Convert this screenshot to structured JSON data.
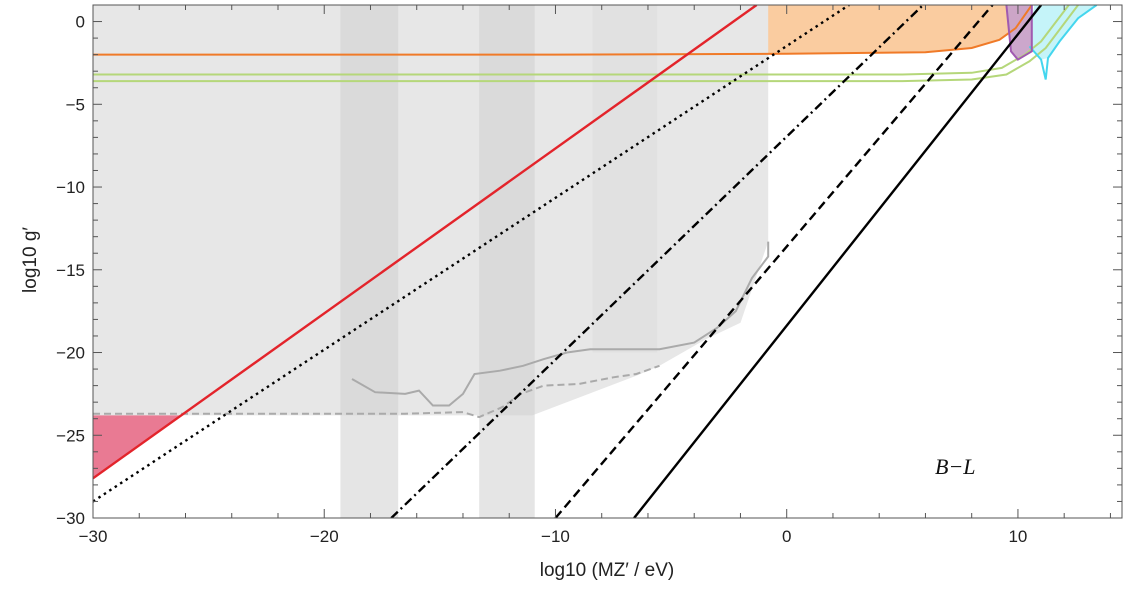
{
  "chart_data": {
    "type": "area",
    "xlabel": "log10 (MZ′ / eV)",
    "ylabel": "log10 g′",
    "model_label": "B−L",
    "xlim": [
      -30,
      14.5
    ],
    "ylim": [
      -30,
      1
    ],
    "xticks": [
      -30,
      -20,
      -10,
      0,
      10
    ],
    "xtick_labels": [
      "−30",
      "−20",
      "−10",
      "0",
      "10"
    ],
    "yticks": [
      0,
      -5,
      -10,
      -15,
      -20,
      -25,
      -30
    ],
    "ytick_labels": [
      "0",
      "−5",
      "−10",
      "−15",
      "−20",
      "−25",
      "−30"
    ],
    "grid": false,
    "colors": {
      "red_region": "#e8738d",
      "red_line": "#e3242b",
      "orange_region": "#f9c796",
      "orange_line": "#f07a28",
      "green_line": "#b5d77a",
      "grey_region": "#e7e7e7",
      "grey_band": "#cfcfcf",
      "grey_line": "#aaaaaa",
      "cyan_region": "#bff3f8",
      "cyan_line": "#44d6ee",
      "purple_region": "#c9a2c9",
      "purple_line": "#a05ab0",
      "black": "#000000"
    },
    "series": [
      {
        "style": "solid",
        "color": "#000000",
        "points": [
          [
            -6.6,
            -30
          ],
          [
            11.0,
            1
          ]
        ]
      },
      {
        "style": "dashed",
        "color": "#000000",
        "points": [
          [
            -10.0,
            -30
          ],
          [
            8.9,
            1
          ]
        ]
      },
      {
        "style": "dashdot",
        "color": "#000000",
        "points": [
          [
            -17.1,
            -30
          ],
          [
            5.9,
            1
          ]
        ]
      },
      {
        "style": "dotted",
        "color": "#000000",
        "points": [
          [
            -30.0,
            -29.0
          ],
          [
            2.7,
            1
          ]
        ]
      },
      {
        "style": "solid",
        "color": "#e3242b",
        "points": [
          [
            -30.0,
            -27.6
          ],
          [
            -1.3,
            1
          ]
        ]
      }
    ],
    "regions": [
      {
        "name": "red",
        "color": "#e8738d",
        "opacity": 0.95,
        "points": [
          [
            -30,
            -27.6
          ],
          [
            -1.3,
            1
          ],
          [
            -30,
            1
          ]
        ]
      },
      {
        "name": "orange",
        "color": "#f9c796",
        "opacity": 0.9,
        "points": [
          [
            -30,
            -2.0
          ],
          [
            -10,
            -2.0
          ],
          [
            0,
            -1.95
          ],
          [
            6,
            -1.85
          ],
          [
            8,
            -1.6
          ],
          [
            9.2,
            -1.1
          ],
          [
            9.9,
            -0.4
          ],
          [
            10.6,
            1
          ],
          [
            -30,
            1
          ]
        ]
      },
      {
        "name": "cyan",
        "color": "#bff3f8",
        "opacity": 0.9,
        "points": [
          [
            10.5,
            -1.5
          ],
          [
            11.0,
            -2.3
          ],
          [
            11.3,
            -2.2
          ],
          [
            11.8,
            -1.2
          ],
          [
            12.6,
            0.2
          ],
          [
            13.4,
            1
          ],
          [
            10.7,
            1
          ]
        ]
      },
      {
        "name": "purple",
        "color": "#c9a2c9",
        "opacity": 0.95,
        "points": [
          [
            9.5,
            1
          ],
          [
            9.7,
            -1.8
          ],
          [
            10.0,
            -2.3
          ],
          [
            10.6,
            -1.8
          ],
          [
            10.6,
            1
          ]
        ]
      },
      {
        "name": "grey-main",
        "color": "#e7e7e7",
        "opacity": 1,
        "points": [
          [
            -30,
            -23.8
          ],
          [
            -11.0,
            -23.8
          ],
          [
            -6.5,
            -21.4
          ],
          [
            -5.5,
            -20.8
          ],
          [
            -3.5,
            -19.2
          ],
          [
            -2.0,
            -18.2
          ],
          [
            -0.8,
            -13.3
          ],
          [
            -0.8,
            1
          ],
          [
            -30,
            1
          ]
        ]
      },
      {
        "name": "grey-band-1",
        "color": "#cfcfcf",
        "opacity": 0.55,
        "points": [
          [
            -19.3,
            -30
          ],
          [
            -16.8,
            -30
          ],
          [
            -16.8,
            1
          ],
          [
            -19.3,
            1
          ]
        ]
      },
      {
        "name": "grey-band-2",
        "color": "#cfcfcf",
        "opacity": 0.55,
        "points": [
          [
            -13.3,
            -30
          ],
          [
            -10.9,
            -30
          ],
          [
            -10.9,
            1
          ],
          [
            -13.3,
            1
          ]
        ]
      },
      {
        "name": "grey-band-3",
        "color": "#dcdcdc",
        "opacity": 0.55,
        "points": [
          [
            -8.4,
            -20
          ],
          [
            -5.6,
            -20
          ],
          [
            -5.6,
            1
          ],
          [
            -8.4,
            1
          ]
        ]
      }
    ],
    "boundary_lines": [
      {
        "name": "orange-boundary",
        "color": "#f07a28",
        "width": 2,
        "dash": "",
        "points": [
          [
            -30,
            -2.0
          ],
          [
            -10,
            -2.0
          ],
          [
            0,
            -1.95
          ],
          [
            6,
            -1.85
          ],
          [
            8,
            -1.6
          ],
          [
            9.2,
            -1.1
          ],
          [
            9.9,
            -0.4
          ],
          [
            10.6,
            1
          ]
        ]
      },
      {
        "name": "green-boundary-a",
        "color": "#b5d77a",
        "width": 2,
        "dash": "",
        "points": [
          [
            -30,
            -3.2
          ],
          [
            5,
            -3.2
          ],
          [
            8,
            -3.1
          ],
          [
            9.3,
            -2.8
          ],
          [
            10.3,
            -2.0
          ],
          [
            11.0,
            -1.2
          ],
          [
            12.2,
            1
          ]
        ]
      },
      {
        "name": "green-boundary-b",
        "color": "#b5d77a",
        "width": 2,
        "dash": "",
        "points": [
          [
            -30,
            -3.6
          ],
          [
            5,
            -3.6
          ],
          [
            8,
            -3.5
          ],
          [
            9.5,
            -3.2
          ],
          [
            10.5,
            -2.4
          ],
          [
            11.2,
            -1.6
          ],
          [
            12.6,
            1
          ]
        ]
      },
      {
        "name": "cyan-boundary",
        "color": "#44d6ee",
        "width": 2,
        "dash": "",
        "points": [
          [
            10.5,
            -1.5
          ],
          [
            11.0,
            -2.3
          ],
          [
            11.2,
            -3.5
          ],
          [
            11.3,
            -2.2
          ],
          [
            11.8,
            -1.2
          ],
          [
            12.6,
            0.2
          ],
          [
            13.4,
            1
          ]
        ]
      },
      {
        "name": "purple-boundary",
        "color": "#a05ab0",
        "width": 2,
        "dash": "",
        "points": [
          [
            9.5,
            1
          ],
          [
            9.7,
            -1.8
          ],
          [
            10.0,
            -2.3
          ],
          [
            10.6,
            -1.8
          ],
          [
            10.6,
            1
          ]
        ]
      },
      {
        "name": "grey-solid-boundary",
        "color": "#aaaaaa",
        "width": 2,
        "dash": "",
        "points": [
          [
            -18.8,
            -21.6
          ],
          [
            -17.8,
            -22.4
          ],
          [
            -16.5,
            -22.5
          ],
          [
            -15.9,
            -22.3
          ],
          [
            -15.3,
            -23.2
          ],
          [
            -14.6,
            -23.2
          ],
          [
            -14.0,
            -22.5
          ],
          [
            -13.5,
            -21.3
          ],
          [
            -12.4,
            -21.1
          ],
          [
            -11.4,
            -20.8
          ],
          [
            -10.5,
            -20.4
          ],
          [
            -9.5,
            -20.0
          ],
          [
            -8.5,
            -19.8
          ],
          [
            -7.0,
            -19.8
          ],
          [
            -5.5,
            -19.8
          ],
          [
            -4.0,
            -19.4
          ],
          [
            -3.0,
            -18.5
          ],
          [
            -2.2,
            -17.5
          ],
          [
            -1.5,
            -15.5
          ],
          [
            -0.8,
            -14.2
          ],
          [
            -0.8,
            -13.3
          ]
        ]
      },
      {
        "name": "grey-dashed-boundary",
        "color": "#aaaaaa",
        "width": 2,
        "dash": "7,4",
        "points": [
          [
            -30,
            -23.7
          ],
          [
            -16.5,
            -23.7
          ],
          [
            -14.0,
            -23.6
          ],
          [
            -13.3,
            -23.9
          ],
          [
            -12.3,
            -23.3
          ],
          [
            -11.5,
            -22.5
          ],
          [
            -10.5,
            -22.0
          ],
          [
            -9.0,
            -21.9
          ],
          [
            -7.5,
            -21.5
          ],
          [
            -6.5,
            -21.3
          ],
          [
            -5.5,
            -20.8
          ]
        ]
      }
    ]
  }
}
